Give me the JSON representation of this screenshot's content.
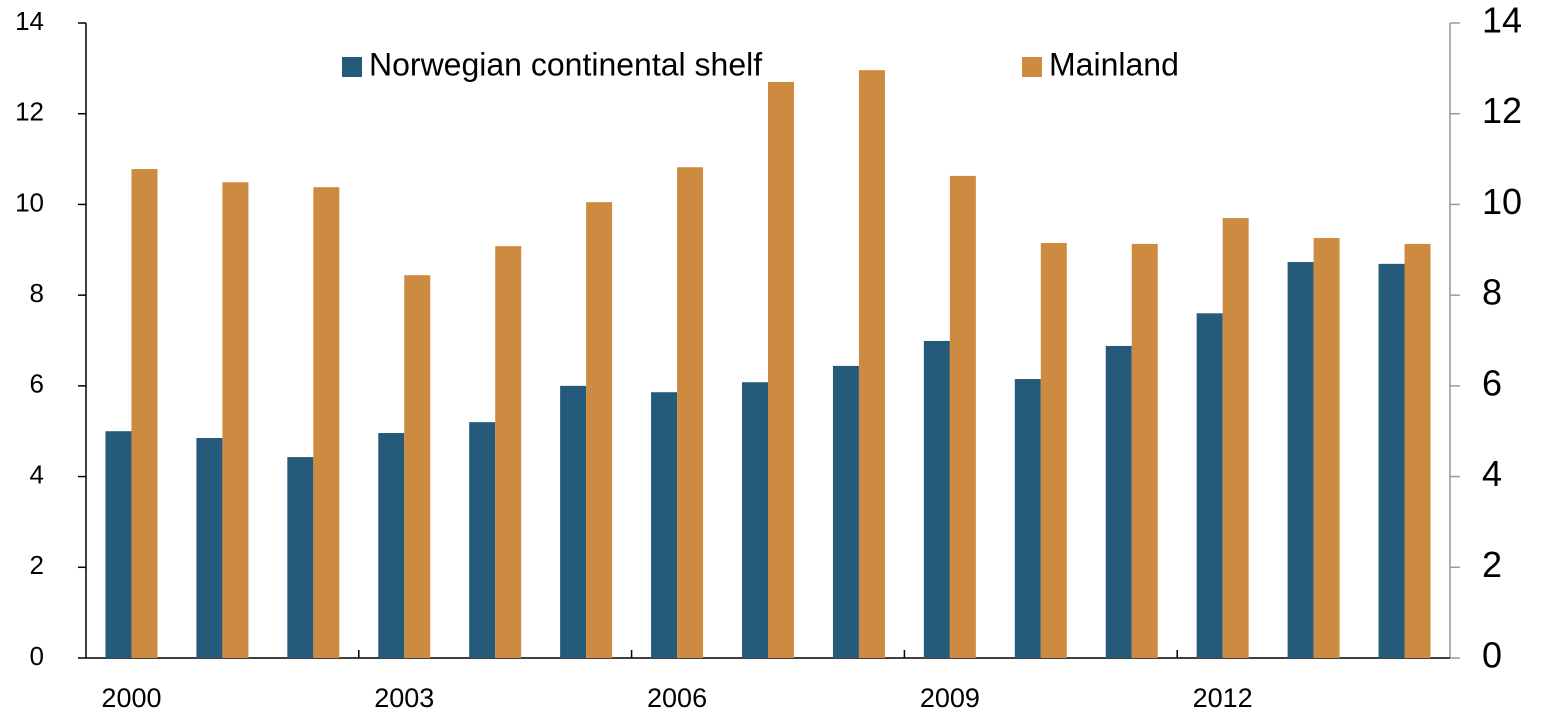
{
  "chart_data": {
    "type": "bar",
    "categories": [
      "2000",
      null,
      null,
      "2003",
      null,
      null,
      "2006",
      null,
      null,
      "2009",
      null,
      null,
      "2012",
      null,
      null
    ],
    "series": [
      {
        "name": "Norwegian continental shelf",
        "color": "#255a7a",
        "values": [
          5.0,
          4.85,
          4.43,
          4.96,
          5.2,
          6.0,
          5.86,
          6.08,
          6.44,
          6.99,
          6.15,
          6.88,
          7.6,
          8.73,
          8.69
        ]
      },
      {
        "name": "Mainland",
        "color": "#cd8b41",
        "values": [
          10.78,
          10.49,
          10.38,
          8.44,
          9.08,
          10.05,
          10.82,
          12.7,
          12.96,
          10.63,
          9.15,
          9.13,
          9.7,
          9.26,
          9.13
        ]
      }
    ],
    "ylim": [
      0,
      14
    ],
    "yticks": [
      0,
      2,
      4,
      6,
      8,
      10,
      12,
      14
    ],
    "y2lim": [
      0,
      14
    ],
    "y2ticks": [
      0,
      2,
      4,
      6,
      8,
      10,
      12,
      14
    ],
    "legend": "top"
  }
}
